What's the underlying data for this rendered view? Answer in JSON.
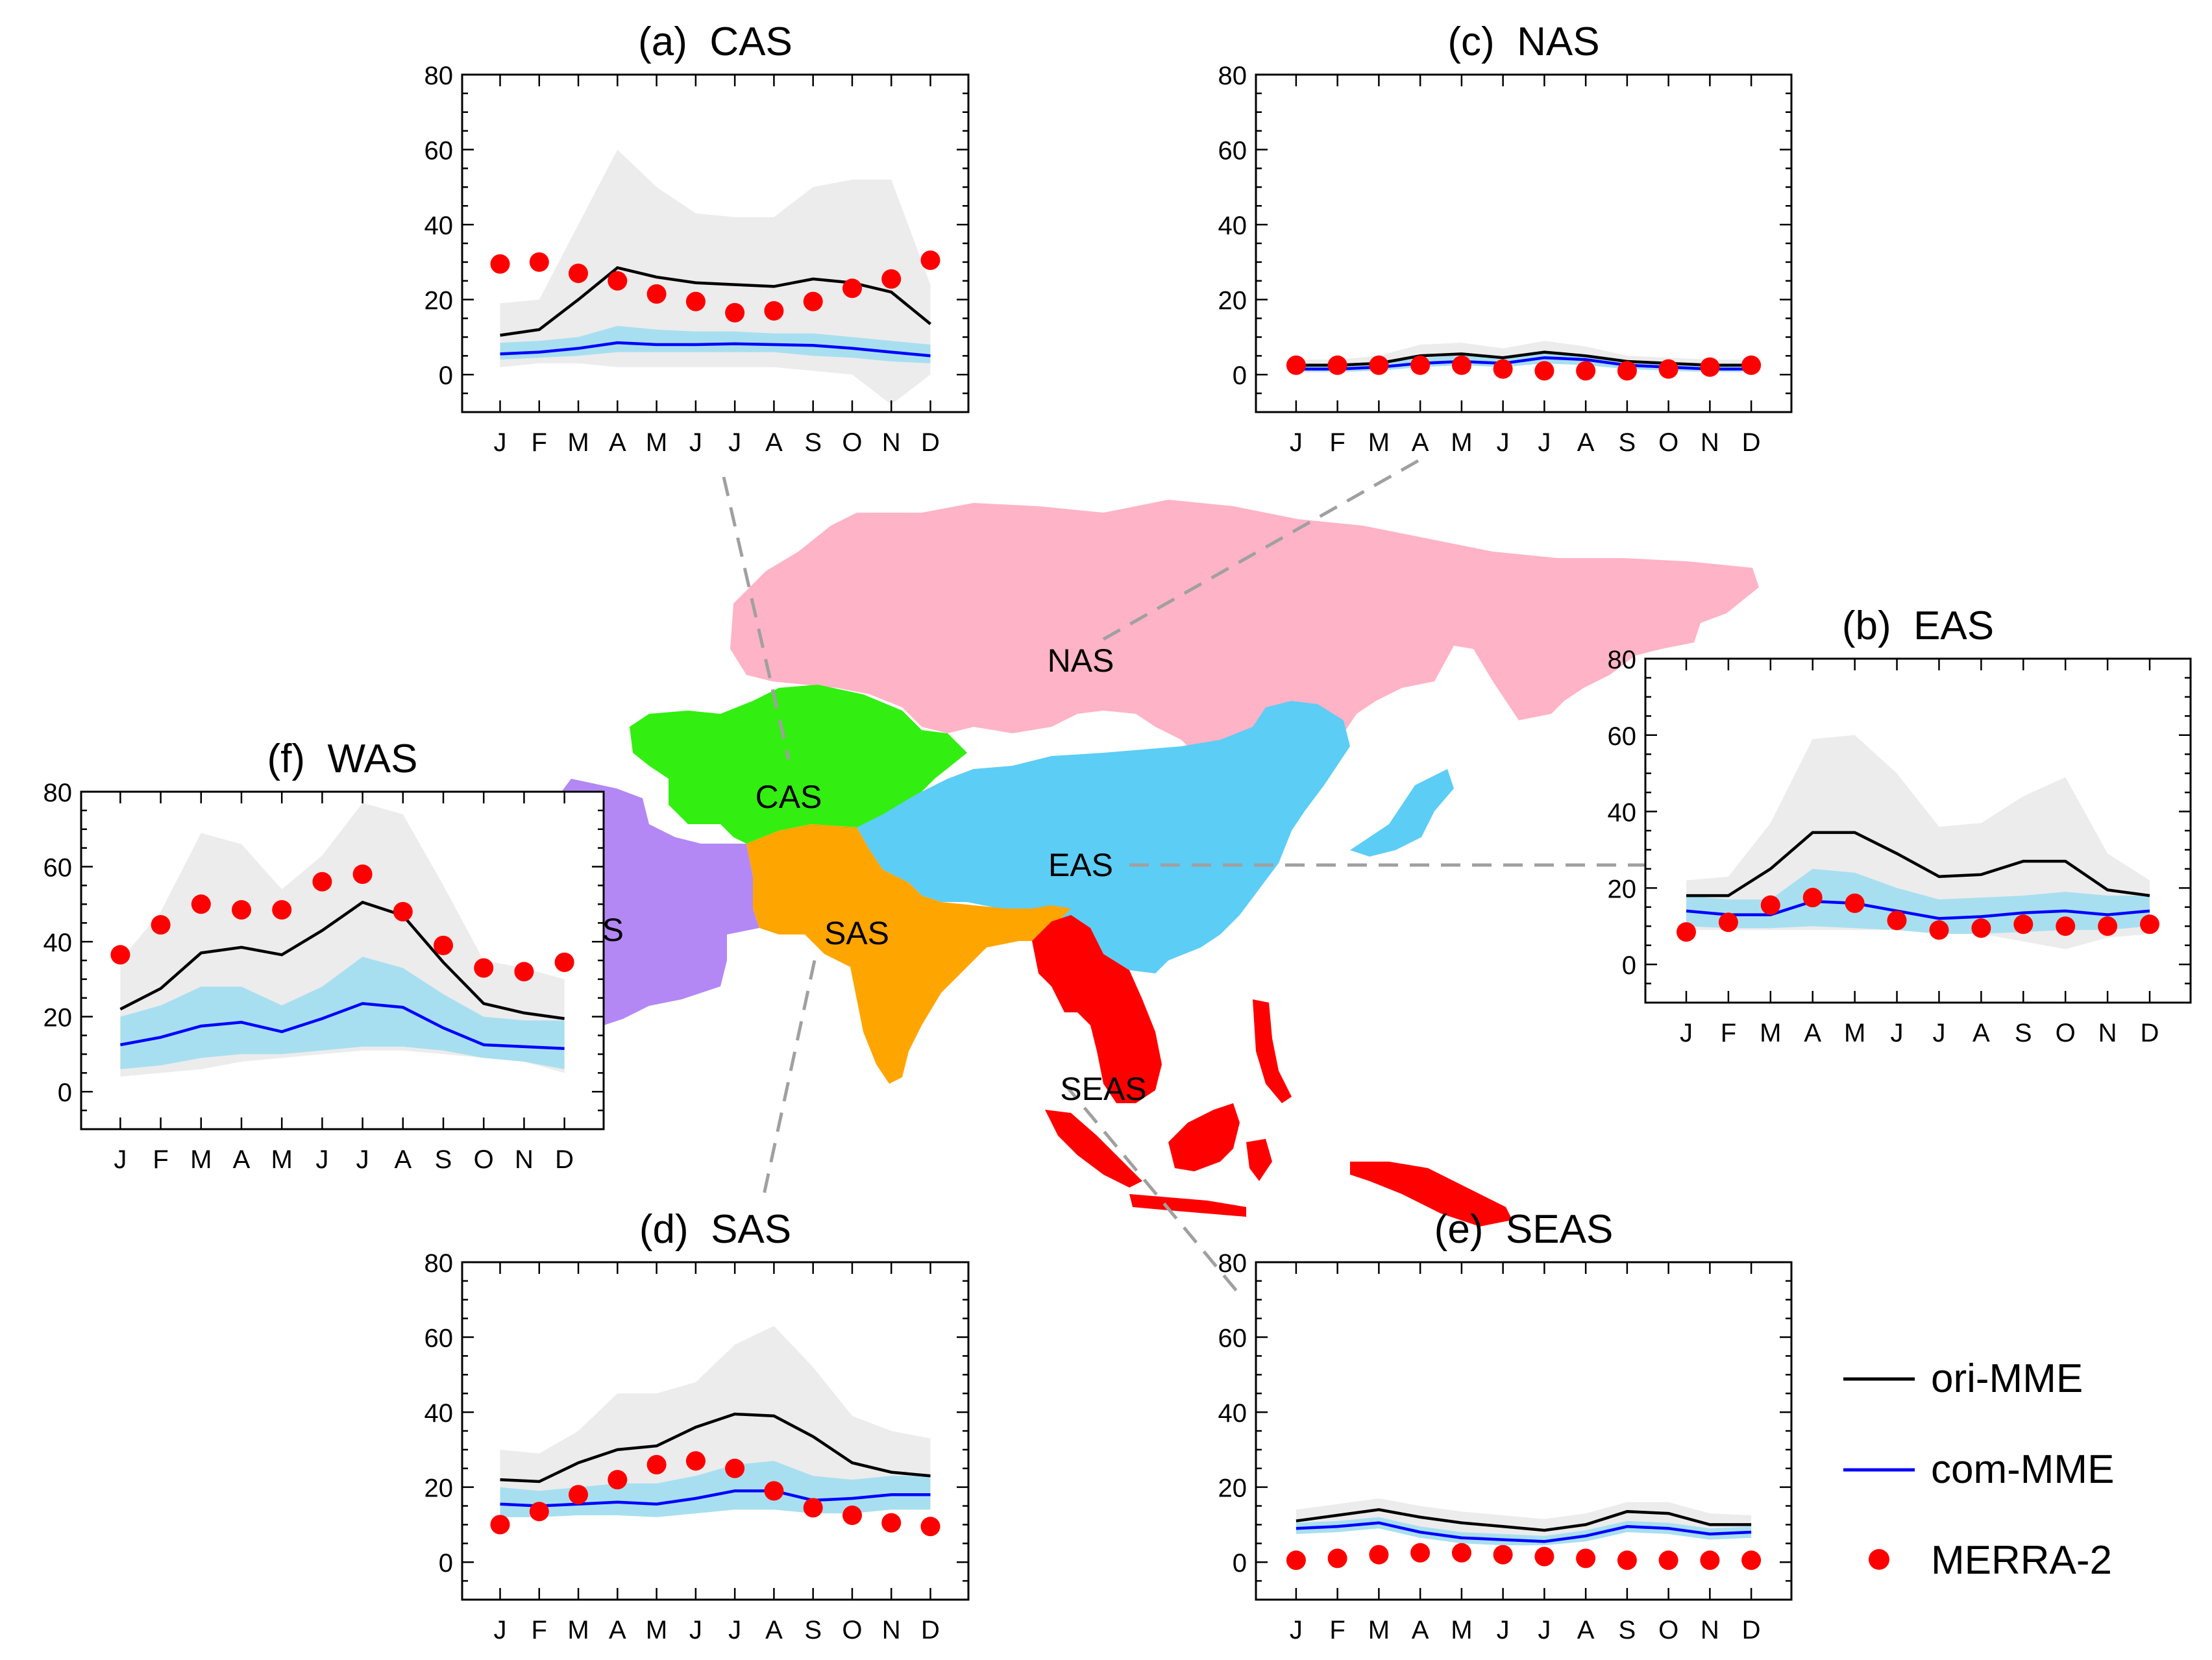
{
  "regions_map": {
    "labels": [
      "NAS",
      "CAS",
      "EAS",
      "WAS",
      "SAS",
      "SEAS"
    ],
    "colors": {
      "NAS": "#ffb3c6",
      "CAS": "#33ee11",
      "EAS": "#5ccdf5",
      "WAS": "#b388f5",
      "SAS": "#ffa500",
      "SEAS": "#ff0000"
    }
  },
  "legend": {
    "entries": [
      {
        "label": "ori-MME",
        "kind": "line",
        "color": "#000000"
      },
      {
        "label": "com-MME",
        "kind": "line",
        "color": "#0000ff"
      },
      {
        "label": "MERRA-2",
        "kind": "dot",
        "color": "#ff0000"
      }
    ]
  },
  "colors": {
    "ori_spread": "#ececec",
    "com_spread": "#a8dff0",
    "ori": "#000000",
    "com": "#0000ff",
    "obs": "#ff0000"
  },
  "chart_data": [
    {
      "type": "line",
      "title": "(a)  CAS",
      "categories": [
        "J",
        "F",
        "M",
        "A",
        "M",
        "J",
        "J",
        "A",
        "S",
        "O",
        "N",
        "D"
      ],
      "ylim": [
        -10,
        80
      ],
      "yticks": [
        0,
        20,
        40,
        60,
        80
      ],
      "series": [
        {
          "name": "ori-MME",
          "values": [
            10.5,
            12,
            20,
            28.5,
            26,
            24.5,
            24,
            23.5,
            25.5,
            24.5,
            22,
            13.5
          ]
        },
        {
          "name": "com-MME",
          "values": [
            5.5,
            6,
            7,
            8.5,
            8,
            8,
            8.2,
            8,
            7.8,
            7,
            6,
            5
          ]
        },
        {
          "name": "MERRA-2",
          "values": [
            29.5,
            30,
            27,
            25,
            21.5,
            19.5,
            16.5,
            17,
            19.5,
            23,
            25.5,
            30.5
          ]
        }
      ],
      "ori_range": {
        "low": [
          2,
          3,
          3,
          2,
          2,
          2,
          2,
          2,
          1,
          0,
          -8,
          0
        ],
        "high": [
          19,
          20,
          40,
          60,
          50,
          43,
          42,
          42,
          50,
          52,
          52,
          24
        ]
      },
      "com_range": {
        "low": [
          4,
          4.5,
          5,
          6,
          6,
          6,
          6,
          6,
          5,
          4.5,
          3.5,
          3
        ],
        "high": [
          8.5,
          9,
          10,
          13,
          12,
          11.5,
          11.5,
          11,
          11,
          10,
          9,
          8
        ]
      }
    },
    {
      "type": "line",
      "title": "(b)  EAS",
      "categories": [
        "J",
        "F",
        "M",
        "A",
        "M",
        "J",
        "J",
        "A",
        "S",
        "O",
        "N",
        "D"
      ],
      "ylim": [
        -10,
        80
      ],
      "yticks": [
        0,
        20,
        40,
        60,
        80
      ],
      "series": [
        {
          "name": "ori-MME",
          "values": [
            18,
            18,
            25,
            34.5,
            34.5,
            29,
            23,
            23.5,
            27,
            27,
            19.5,
            18
          ]
        },
        {
          "name": "com-MME",
          "values": [
            14,
            13,
            13,
            16.5,
            16,
            14,
            12,
            12.5,
            13.5,
            14,
            13,
            14
          ]
        },
        {
          "name": "MERRA-2",
          "values": [
            8.5,
            11,
            15.5,
            17.5,
            16,
            11.5,
            9,
            9.5,
            10.5,
            10,
            10,
            10.5
          ]
        }
      ],
      "ori_range": {
        "low": [
          9,
          9,
          9,
          9,
          9,
          9,
          8,
          8,
          6,
          4,
          7,
          8
        ],
        "high": [
          22,
          23,
          37,
          59,
          60,
          50,
          36,
          37,
          44,
          49,
          29,
          22
        ]
      },
      "com_range": {
        "low": [
          10,
          9.5,
          9.5,
          10,
          9.5,
          9,
          8,
          8,
          8.5,
          9,
          9,
          10
        ],
        "high": [
          18,
          17,
          17,
          25,
          24,
          20,
          17,
          17.5,
          18,
          19,
          18,
          18
        ]
      }
    },
    {
      "type": "line",
      "title": "(c)  NAS",
      "categories": [
        "J",
        "F",
        "M",
        "A",
        "M",
        "J",
        "J",
        "A",
        "S",
        "O",
        "N",
        "D"
      ],
      "ylim": [
        -10,
        80
      ],
      "yticks": [
        0,
        20,
        40,
        60,
        80
      ],
      "series": [
        {
          "name": "ori-MME",
          "values": [
            2.5,
            2.5,
            3,
            5,
            5.5,
            4.5,
            6,
            5,
            3.5,
            3,
            2.5,
            2.5
          ]
        },
        {
          "name": "com-MME",
          "values": [
            1.5,
            1.5,
            2,
            3,
            3.5,
            3,
            4.5,
            4,
            2.5,
            2,
            1.5,
            1.5
          ]
        },
        {
          "name": "MERRA-2",
          "values": [
            2.5,
            2.5,
            2.5,
            2.5,
            2.5,
            1.5,
            1,
            1,
            1,
            1.5,
            2,
            2.5
          ]
        }
      ],
      "ori_range": {
        "low": [
          0.5,
          0.5,
          1,
          2,
          2.5,
          2,
          3,
          2.5,
          1.5,
          1,
          0.5,
          0.5
        ],
        "high": [
          4,
          4,
          5,
          8,
          8.5,
          7,
          9,
          7.5,
          5,
          4.5,
          4,
          4
        ]
      },
      "com_range": {
        "low": [
          0.8,
          0.8,
          1,
          2,
          2.5,
          2,
          3,
          2.5,
          1.5,
          1,
          0.8,
          0.8
        ],
        "high": [
          2.5,
          2.5,
          3,
          4.5,
          5,
          4.5,
          6,
          5,
          3.5,
          3,
          2.5,
          2.5
        ]
      }
    },
    {
      "type": "line",
      "title": "(d)  SAS",
      "categories": [
        "J",
        "F",
        "M",
        "A",
        "M",
        "J",
        "J",
        "A",
        "S",
        "O",
        "N",
        "D"
      ],
      "ylim": [
        -10,
        80
      ],
      "yticks": [
        0,
        20,
        40,
        60,
        80
      ],
      "series": [
        {
          "name": "ori-MME",
          "values": [
            22,
            21.5,
            26.5,
            30,
            31,
            36,
            39.5,
            39,
            33.5,
            26.5,
            24,
            23
          ]
        },
        {
          "name": "com-MME",
          "values": [
            15.5,
            15,
            15.5,
            16,
            15.5,
            17,
            19,
            19,
            16.5,
            17,
            18,
            18
          ]
        },
        {
          "name": "MERRA-2",
          "values": [
            10,
            13.5,
            18,
            22,
            26,
            27,
            25,
            19,
            14.5,
            12.5,
            10.5,
            9.5
          ]
        }
      ],
      "ori_range": {
        "low": [
          12,
          12,
          13,
          13,
          13,
          13,
          14,
          14,
          14,
          14,
          14,
          14
        ],
        "high": [
          30,
          29,
          35,
          45,
          45,
          48,
          58,
          63,
          52,
          39,
          35,
          33
        ]
      },
      "com_range": {
        "low": [
          12,
          12,
          12.5,
          12.5,
          12,
          13,
          14,
          14,
          13,
          13,
          14,
          14
        ],
        "high": [
          20,
          19,
          20,
          21,
          21,
          23,
          26,
          27,
          23,
          22,
          23,
          23
        ]
      }
    },
    {
      "type": "line",
      "title": "(e)  SEAS",
      "categories": [
        "J",
        "F",
        "M",
        "A",
        "M",
        "J",
        "J",
        "A",
        "S",
        "O",
        "N",
        "D"
      ],
      "ylim": [
        -10,
        80
      ],
      "yticks": [
        0,
        20,
        40,
        60,
        80
      ],
      "series": [
        {
          "name": "ori-MME",
          "values": [
            11,
            12.5,
            14,
            12,
            10.5,
            9.5,
            8.5,
            10,
            13.5,
            13,
            10,
            10
          ]
        },
        {
          "name": "com-MME",
          "values": [
            9,
            9.5,
            10.5,
            8,
            6.5,
            6,
            5.5,
            7,
            9.5,
            9,
            7.5,
            8
          ]
        },
        {
          "name": "MERRA-2",
          "values": [
            0.5,
            1,
            2,
            2.5,
            2.5,
            2,
            1.5,
            1,
            0.5,
            0.5,
            0.5,
            0.5
          ]
        }
      ],
      "ori_range": {
        "low": [
          8,
          9,
          10,
          8,
          7,
          6,
          6,
          7,
          9,
          9,
          7,
          7
        ],
        "high": [
          14,
          15.5,
          17,
          15,
          13.5,
          12.5,
          11.5,
          13,
          16,
          16,
          13,
          12.5
        ]
      },
      "com_range": {
        "low": [
          7.5,
          8,
          9,
          6.5,
          5,
          4.5,
          4.5,
          5.5,
          8,
          7.5,
          6,
          6.5
        ],
        "high": [
          10.5,
          11,
          12,
          9.5,
          8,
          7.5,
          7,
          8.5,
          11,
          10.5,
          9,
          9.5
        ]
      }
    },
    {
      "type": "line",
      "title": "(f)  WAS",
      "categories": [
        "J",
        "F",
        "M",
        "A",
        "M",
        "J",
        "J",
        "A",
        "S",
        "O",
        "N",
        "D"
      ],
      "ylim": [
        -10,
        80
      ],
      "yticks": [
        0,
        20,
        40,
        60,
        80
      ],
      "series": [
        {
          "name": "ori-MME",
          "values": [
            22,
            27.5,
            37,
            38.5,
            36.5,
            43,
            50.5,
            47,
            34.5,
            23.5,
            21,
            19.5
          ]
        },
        {
          "name": "com-MME",
          "values": [
            12.5,
            14.5,
            17.5,
            18.5,
            16,
            19.5,
            23.5,
            22.5,
            17,
            12.5,
            12,
            11.5
          ]
        },
        {
          "name": "MERRA-2",
          "values": [
            36.5,
            44.5,
            50,
            48.5,
            48.5,
            56,
            58,
            48,
            39,
            33,
            32,
            34.5
          ]
        }
      ],
      "ori_range": {
        "low": [
          4,
          5,
          6,
          8,
          9,
          10,
          11,
          11,
          10,
          9,
          8,
          5
        ],
        "high": [
          35,
          48,
          69,
          66,
          54,
          63,
          77,
          74,
          55,
          35,
          33,
          30
        ]
      },
      "com_range": {
        "low": [
          6,
          7,
          9,
          10,
          10,
          11,
          12,
          12,
          11,
          9,
          8,
          6
        ],
        "high": [
          20,
          23,
          28,
          28,
          23,
          28,
          36,
          33,
          26,
          20,
          19,
          19
        ]
      }
    }
  ]
}
